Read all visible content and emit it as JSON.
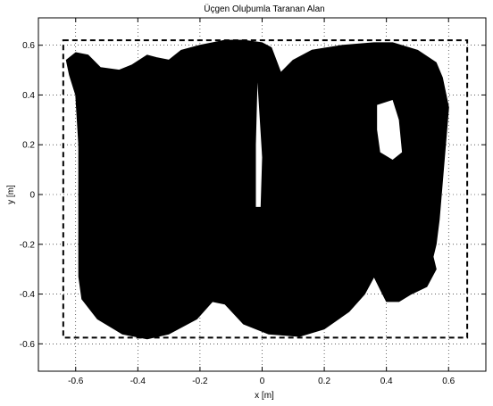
{
  "chart_data": {
    "type": "area",
    "title": "Üçgen Oluþumla Taranan Alan",
    "xlabel": "x [m]",
    "ylabel": "y [m]",
    "xlim": [
      -0.72,
      0.72
    ],
    "ylim": [
      -0.71,
      0.71
    ],
    "xticks": [
      -0.6,
      -0.4,
      -0.2,
      0,
      0.2,
      0.4,
      0.6
    ],
    "yticks": [
      -0.6,
      -0.4,
      -0.2,
      0,
      0.2,
      0.4,
      0.6
    ],
    "xtick_labels": [
      "-0.6",
      "-0.4",
      "-0.2",
      "0",
      "0.2",
      "0.4",
      "0.6"
    ],
    "ytick_labels": [
      "-0.6",
      "-0.4",
      "-0.2",
      "0",
      "0.2",
      "0.4",
      "0.6"
    ],
    "grid": true,
    "scanned_area_color": "#000000",
    "boundary": {
      "style": "dashed",
      "x": [
        -0.64,
        0.66
      ],
      "y": [
        -0.575,
        0.62
      ]
    },
    "scanned_region_outline": [
      [
        -0.63,
        0.54
      ],
      [
        -0.6,
        0.57
      ],
      [
        -0.56,
        0.56
      ],
      [
        -0.52,
        0.51
      ],
      [
        -0.46,
        0.5
      ],
      [
        -0.42,
        0.52
      ],
      [
        -0.37,
        0.56
      ],
      [
        -0.34,
        0.55
      ],
      [
        -0.3,
        0.54
      ],
      [
        -0.26,
        0.58
      ],
      [
        -0.2,
        0.6
      ],
      [
        -0.12,
        0.62
      ],
      [
        -0.06,
        0.62
      ],
      [
        0.0,
        0.61
      ],
      [
        0.03,
        0.59
      ],
      [
        0.06,
        0.49
      ],
      [
        0.1,
        0.54
      ],
      [
        0.16,
        0.58
      ],
      [
        0.26,
        0.6
      ],
      [
        0.36,
        0.61
      ],
      [
        0.42,
        0.61
      ],
      [
        0.5,
        0.58
      ],
      [
        0.56,
        0.53
      ],
      [
        0.58,
        0.47
      ],
      [
        0.6,
        0.35
      ],
      [
        0.59,
        0.2
      ],
      [
        0.58,
        0.05
      ],
      [
        0.57,
        -0.1
      ],
      [
        0.56,
        -0.2
      ],
      [
        0.55,
        -0.25
      ],
      [
        0.56,
        -0.3
      ],
      [
        0.53,
        -0.37
      ],
      [
        0.48,
        -0.4
      ],
      [
        0.44,
        -0.43
      ],
      [
        0.4,
        -0.43
      ],
      [
        0.38,
        -0.38
      ],
      [
        0.36,
        -0.33
      ],
      [
        0.33,
        -0.4
      ],
      [
        0.28,
        -0.47
      ],
      [
        0.2,
        -0.54
      ],
      [
        0.12,
        -0.57
      ],
      [
        0.02,
        -0.56
      ],
      [
        -0.06,
        -0.52
      ],
      [
        -0.12,
        -0.44
      ],
      [
        -0.16,
        -0.43
      ],
      [
        -0.21,
        -0.5
      ],
      [
        -0.3,
        -0.56
      ],
      [
        -0.37,
        -0.58
      ],
      [
        -0.45,
        -0.56
      ],
      [
        -0.53,
        -0.5
      ],
      [
        -0.58,
        -0.42
      ],
      [
        -0.59,
        -0.33
      ],
      [
        -0.59,
        0.2
      ],
      [
        -0.6,
        0.4
      ],
      [
        -0.62,
        0.48
      ]
    ],
    "unscanned_gaps": [
      {
        "name": "center-gap",
        "outline": [
          [
            -0.015,
            0.45
          ],
          [
            0.0,
            0.15
          ],
          [
            -0.005,
            -0.05
          ],
          [
            -0.02,
            -0.05
          ],
          [
            -0.02,
            0.2
          ]
        ]
      },
      {
        "name": "right-gap",
        "outline": [
          [
            0.37,
            0.36
          ],
          [
            0.42,
            0.38
          ],
          [
            0.44,
            0.3
          ],
          [
            0.45,
            0.17
          ],
          [
            0.42,
            0.14
          ],
          [
            0.38,
            0.17
          ],
          [
            0.37,
            0.26
          ]
        ]
      }
    ]
  }
}
